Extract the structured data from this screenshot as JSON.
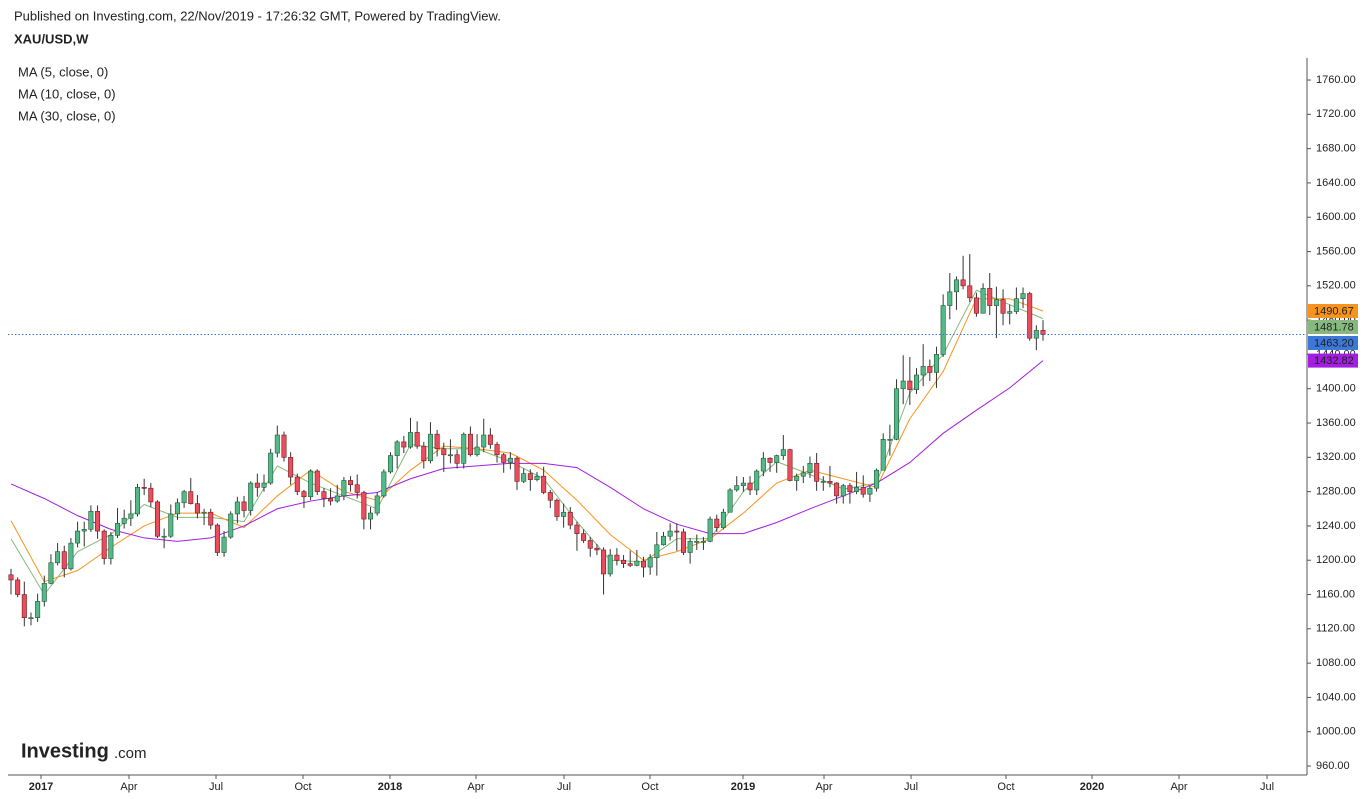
{
  "header": {
    "published": "Published on Investing.com, 22/Nov/2019 - 17:26:32 GMT, Powered by TradingView.",
    "symbol": "XAU/USD,W"
  },
  "logo": {
    "brand": "Investing",
    "suffix": ".com"
  },
  "chart_data": {
    "type": "candlestick",
    "candles": {
      "up_color": "#53b987",
      "down_color": "#eb4d5c",
      "open": [
        1183,
        1177,
        1160,
        1133,
        1133,
        1152,
        1173,
        1197,
        1210,
        1190,
        1220,
        1234,
        1236,
        1257,
        1234,
        1202,
        1229,
        1243,
        1249,
        1254,
        1285,
        1284,
        1268,
        1228,
        1228,
        1254,
        1267,
        1280,
        1266,
        1255,
        1256,
        1241,
        1209,
        1227,
        1254,
        1268,
        1258,
        1290,
        1285,
        1290,
        1325,
        1346,
        1320,
        1297,
        1280,
        1274,
        1304,
        1280,
        1272,
        1269,
        1275,
        1293,
        1288,
        1279,
        1248,
        1255,
        1275,
        1303,
        1322,
        1338,
        1332,
        1349,
        1333,
        1316,
        1347,
        1330,
        1323,
        1323,
        1313,
        1347,
        1323,
        1332,
        1346,
        1335,
        1323,
        1314,
        1319,
        1292,
        1301,
        1294,
        1298,
        1279,
        1270,
        1251,
        1256,
        1241,
        1231,
        1223,
        1214,
        1212,
        1184,
        1206,
        1200,
        1196,
        1194,
        1199,
        1192,
        1203,
        1218,
        1228,
        1234,
        1233,
        1209,
        1222,
        1222,
        1222,
        1248,
        1238,
        1256,
        1282,
        1287,
        1290,
        1282,
        1304,
        1319,
        1314,
        1322,
        1329,
        1293,
        1298,
        1302,
        1313,
        1292,
        1292,
        1290,
        1275,
        1287,
        1280,
        1285,
        1277,
        1284,
        1305,
        1341,
        1341,
        1400,
        1409,
        1399,
        1416,
        1426,
        1419,
        1440,
        1497,
        1513,
        1527,
        1520,
        1506,
        1488,
        1517,
        1497,
        1504,
        1488,
        1490,
        1505,
        1511,
        1459,
        1468
      ],
      "high": [
        1190,
        1180,
        1175,
        1139,
        1161,
        1182,
        1207,
        1220,
        1217,
        1226,
        1245,
        1245,
        1264,
        1264,
        1236,
        1233,
        1261,
        1259,
        1270,
        1289,
        1295,
        1290,
        1270,
        1237,
        1265,
        1272,
        1282,
        1296,
        1276,
        1260,
        1260,
        1243,
        1234,
        1257,
        1274,
        1275,
        1292,
        1301,
        1300,
        1330,
        1357,
        1350,
        1326,
        1301,
        1282,
        1306,
        1306,
        1284,
        1284,
        1288,
        1297,
        1298,
        1300,
        1281,
        1262,
        1279,
        1306,
        1326,
        1340,
        1345,
        1366,
        1362,
        1338,
        1361,
        1352,
        1337,
        1341,
        1329,
        1349,
        1356,
        1347,
        1365,
        1354,
        1338,
        1325,
        1326,
        1321,
        1307,
        1306,
        1303,
        1309,
        1282,
        1272,
        1266,
        1262,
        1245,
        1236,
        1227,
        1219,
        1215,
        1213,
        1214,
        1206,
        1211,
        1212,
        1204,
        1207,
        1233,
        1233,
        1243,
        1243,
        1237,
        1226,
        1230,
        1227,
        1251,
        1253,
        1260,
        1284,
        1298,
        1297,
        1298,
        1306,
        1326,
        1320,
        1323,
        1346,
        1330,
        1301,
        1310,
        1321,
        1325,
        1298,
        1310,
        1291,
        1289,
        1290,
        1303,
        1299,
        1287,
        1307,
        1348,
        1358,
        1411,
        1439,
        1437,
        1424,
        1452,
        1434,
        1449,
        1510,
        1535,
        1531,
        1555,
        1557,
        1512,
        1523,
        1535,
        1519,
        1516,
        1498,
        1518,
        1518,
        1513,
        1474,
        1480
      ],
      "low": [
        1160,
        1157,
        1123,
        1124,
        1128,
        1146,
        1172,
        1194,
        1180,
        1188,
        1215,
        1216,
        1233,
        1225,
        1195,
        1195,
        1226,
        1237,
        1240,
        1251,
        1276,
        1262,
        1226,
        1214,
        1226,
        1247,
        1261,
        1265,
        1249,
        1241,
        1236,
        1205,
        1204,
        1225,
        1243,
        1250,
        1252,
        1274,
        1280,
        1288,
        1320,
        1315,
        1288,
        1276,
        1261,
        1270,
        1276,
        1262,
        1264,
        1267,
        1270,
        1280,
        1272,
        1236,
        1236,
        1252,
        1273,
        1301,
        1307,
        1325,
        1330,
        1330,
        1307,
        1313,
        1321,
        1303,
        1313,
        1307,
        1307,
        1321,
        1321,
        1326,
        1330,
        1314,
        1302,
        1306,
        1282,
        1290,
        1281,
        1292,
        1277,
        1261,
        1246,
        1238,
        1236,
        1211,
        1220,
        1204,
        1206,
        1160,
        1181,
        1194,
        1191,
        1192,
        1193,
        1180,
        1183,
        1182,
        1217,
        1223,
        1211,
        1206,
        1196,
        1212,
        1212,
        1221,
        1233,
        1236,
        1256,
        1280,
        1280,
        1276,
        1276,
        1298,
        1303,
        1302,
        1317,
        1292,
        1281,
        1290,
        1296,
        1281,
        1281,
        1285,
        1266,
        1266,
        1266,
        1277,
        1273,
        1268,
        1280,
        1305,
        1322,
        1340,
        1382,
        1381,
        1394,
        1403,
        1409,
        1401,
        1437,
        1481,
        1492,
        1516,
        1501,
        1484,
        1488,
        1486,
        1459,
        1474,
        1475,
        1487,
        1494,
        1456,
        1445,
        1456
      ],
      "close": [
        1177,
        1160,
        1133,
        1133,
        1152,
        1173,
        1197,
        1210,
        1190,
        1220,
        1234,
        1236,
        1257,
        1234,
        1202,
        1229,
        1243,
        1249,
        1254,
        1285,
        1284,
        1268,
        1228,
        1228,
        1254,
        1267,
        1280,
        1266,
        1255,
        1256,
        1241,
        1209,
        1227,
        1254,
        1268,
        1258,
        1290,
        1285,
        1290,
        1325,
        1346,
        1320,
        1297,
        1280,
        1274,
        1304,
        1280,
        1272,
        1269,
        1275,
        1293,
        1288,
        1279,
        1248,
        1255,
        1275,
        1303,
        1322,
        1338,
        1332,
        1349,
        1333,
        1316,
        1347,
        1330,
        1323,
        1323,
        1313,
        1347,
        1323,
        1332,
        1346,
        1335,
        1323,
        1314,
        1319,
        1292,
        1301,
        1294,
        1298,
        1279,
        1270,
        1251,
        1256,
        1241,
        1231,
        1223,
        1214,
        1212,
        1184,
        1206,
        1200,
        1196,
        1194,
        1199,
        1192,
        1203,
        1218,
        1228,
        1234,
        1233,
        1209,
        1222,
        1222,
        1222,
        1248,
        1238,
        1256,
        1282,
        1287,
        1290,
        1282,
        1304,
        1319,
        1314,
        1322,
        1329,
        1293,
        1298,
        1302,
        1313,
        1292,
        1292,
        1290,
        1275,
        1287,
        1280,
        1285,
        1277,
        1284,
        1305,
        1341,
        1341,
        1400,
        1409,
        1399,
        1416,
        1426,
        1419,
        1440,
        1497,
        1513,
        1527,
        1520,
        1506,
        1488,
        1517,
        1497,
        1504,
        1488,
        1490,
        1505,
        1511,
        1459,
        1468,
        1463.2
      ]
    },
    "last_price": {
      "value": 1463.2,
      "label": "1463.20",
      "color": "#3c78d8"
    },
    "series": [
      {
        "name": "MA (5, close, 0)",
        "color": "#86b97e",
        "x": [
          0,
          5,
          10,
          15,
          20,
          25,
          30,
          35,
          40,
          45,
          50,
          55,
          60,
          65,
          70,
          75,
          80,
          85,
          90,
          95,
          100,
          105,
          110,
          115,
          120,
          125,
          130,
          135,
          140,
          145,
          150,
          155
        ],
        "values": [
          1225,
          1160,
          1210,
          1230,
          1265,
          1250,
          1250,
          1245,
          1310,
          1290,
          1275,
          1260,
          1335,
          1330,
          1330,
          1315,
          1295,
          1245,
          1200,
          1198,
          1225,
          1225,
          1280,
          1315,
          1300,
          1283,
          1290,
          1395,
          1440,
          1515,
          1498,
          1481.78
        ]
      },
      {
        "name": "MA (10, close, 0)",
        "color": "#f7941d",
        "x": [
          0,
          5,
          10,
          15,
          20,
          25,
          30,
          35,
          40,
          45,
          50,
          55,
          60,
          65,
          70,
          75,
          80,
          85,
          90,
          95,
          100,
          105,
          110,
          115,
          120,
          125,
          130,
          135,
          140,
          145,
          150,
          155
        ],
        "values": [
          1246,
          1175,
          1188,
          1215,
          1240,
          1255,
          1255,
          1238,
          1275,
          1305,
          1280,
          1270,
          1305,
          1333,
          1330,
          1325,
          1305,
          1270,
          1230,
          1200,
          1210,
          1225,
          1255,
          1290,
          1305,
          1295,
          1285,
          1365,
          1420,
          1505,
          1505,
          1490.67
        ]
      },
      {
        "name": "MA (30, close, 0)",
        "color": "#a31ee0",
        "x": [
          0,
          5,
          10,
          15,
          20,
          25,
          30,
          35,
          40,
          45,
          50,
          55,
          60,
          65,
          70,
          75,
          80,
          85,
          90,
          95,
          100,
          105,
          110,
          115,
          120,
          125,
          130,
          135,
          140,
          145,
          150,
          155
        ],
        "values": [
          1289,
          1272,
          1252,
          1236,
          1226,
          1222,
          1226,
          1240,
          1260,
          1269,
          1275,
          1279,
          1295,
          1307,
          1310,
          1313,
          1313,
          1308,
          1285,
          1260,
          1242,
          1231,
          1231,
          1244,
          1260,
          1275,
          1290,
          1314,
          1348,
          1375,
          1401,
          1432.82
        ]
      }
    ],
    "ylim": [
      950.7,
      1785.7
    ],
    "yticks": [
      {
        "value": 960,
        "label": "960.00"
      },
      {
        "value": 1000,
        "label": "1000.00"
      },
      {
        "value": 1040,
        "label": "1040.00"
      },
      {
        "value": 1080,
        "label": "1080.00"
      },
      {
        "value": 1120,
        "label": "1120.00"
      },
      {
        "value": 1160,
        "label": "1160.00"
      },
      {
        "value": 1200,
        "label": "1200.00"
      },
      {
        "value": 1240,
        "label": "1240.00"
      },
      {
        "value": 1280,
        "label": "1280.00"
      },
      {
        "value": 1320,
        "label": "1320.00"
      },
      {
        "value": 1360,
        "label": "1360.00"
      },
      {
        "value": 1400,
        "label": "1400.00"
      },
      {
        "value": 1440,
        "label": "1440.00"
      },
      {
        "value": 1480,
        "label": "1480.00"
      },
      {
        "value": 1520,
        "label": "1520.00"
      },
      {
        "value": 1560,
        "label": "1560.00"
      },
      {
        "value": 1600,
        "label": "1600.00"
      },
      {
        "value": 1640,
        "label": "1640.00"
      },
      {
        "value": 1680,
        "label": "1680.00"
      },
      {
        "value": 1720,
        "label": "1720.00"
      },
      {
        "value": 1760,
        "label": "1760.00"
      }
    ],
    "xlim": [
      -0.45,
      194.5
    ],
    "xticks": [
      {
        "value": 4.51,
        "label": "2017"
      },
      {
        "value": 17.72,
        "label": "Apr"
      },
      {
        "value": 30.79,
        "label": "Jul"
      },
      {
        "value": 43.86,
        "label": "Oct"
      },
      {
        "value": 56.92,
        "label": "2018"
      },
      {
        "value": 69.84,
        "label": "Apr"
      },
      {
        "value": 83.06,
        "label": "Jul"
      },
      {
        "value": 95.97,
        "label": "Oct"
      },
      {
        "value": 109.94,
        "label": "2019"
      },
      {
        "value": 122.11,
        "label": "Apr"
      },
      {
        "value": 135.18,
        "label": "Jul"
      },
      {
        "value": 149.44,
        "label": "Oct"
      },
      {
        "value": 162.36,
        "label": "2020"
      },
      {
        "value": 175.43,
        "label": "Apr"
      },
      {
        "value": 188.65,
        "label": "Jul"
      }
    ],
    "grid": false
  }
}
